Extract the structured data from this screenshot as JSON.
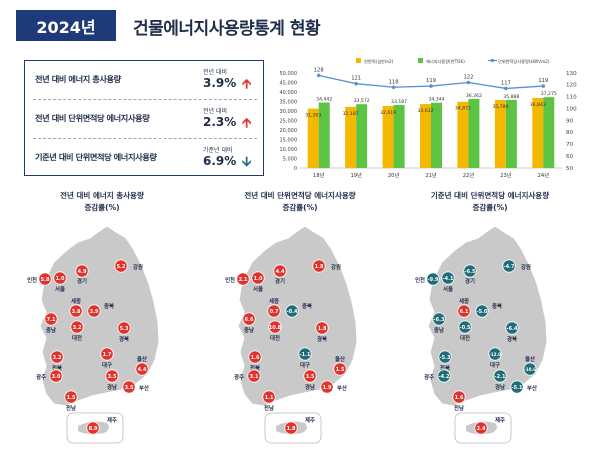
{
  "header": {
    "year_badge": "2024년",
    "title": "건물에너지사용량통계 현황"
  },
  "summary": [
    {
      "label": "전년 대비 에너지 총사용량",
      "sub": "전년 대비",
      "value": "3.9%",
      "direction": "up"
    },
    {
      "label": "전년 대비 단위면적당 에너지사용량",
      "sub": "전년 대비",
      "value": "2.3%",
      "direction": "up"
    },
    {
      "label": "기준년 대비 단위면적당 에너지사용량",
      "sub": "기준년 대비",
      "value": "6.9%",
      "direction": "down"
    }
  ],
  "colors": {
    "navy": "#1f3a78",
    "up": "#e0332b",
    "down": "#1f6d78",
    "bar_orange": "#f5b800",
    "bar_green": "#5cc343",
    "line": "#5b8fd4",
    "map_land": "#c9c9c9",
    "marker_red": "#e0332b",
    "marker_teal": "#1f6d78"
  },
  "chart_data": {
    "type": "bar",
    "categories": [
      "18년",
      "19년",
      "20년",
      "21년",
      "22년",
      "23년",
      "24년"
    ],
    "series": [
      {
        "name": "연면적(십만m2)",
        "type": "bar",
        "values": [
          31263,
          32187,
          32619,
          33632,
          34872,
          35789,
          36843
        ]
      },
      {
        "name": "에너지사용량(천TOE)",
        "type": "bar",
        "values": [
          34442,
          33572,
          33187,
          34344,
          36362,
          35888,
          37275
        ]
      },
      {
        "name": "단위면적당사용량(kWh/m2)",
        "type": "line",
        "axis": "right",
        "values": [
          128,
          121,
          118,
          119,
          122,
          117,
          119
        ]
      }
    ],
    "left_ticks": [
      "50,000",
      "45,000",
      "40,000",
      "35,000",
      "30,000",
      "25,000",
      "20,000",
      "15,000",
      "10,000",
      "5,000",
      "0"
    ],
    "right_ticks": [
      "130",
      "120",
      "110",
      "100",
      "90",
      "80",
      "70",
      "60",
      "50"
    ],
    "ylim_left": [
      0,
      50000
    ],
    "ylim_right": [
      50,
      130
    ]
  },
  "maps": [
    {
      "title_line1": "전년 대비 에너지 총사용량",
      "title_line2": "증감률(%)",
      "regions": [
        {
          "name": "인천",
          "value": "5.8",
          "color": "red"
        },
        {
          "name": "서울",
          "value": "1.0",
          "color": "red"
        },
        {
          "name": "경기",
          "value": "4.9",
          "color": "red"
        },
        {
          "name": "강원",
          "value": "5.2",
          "color": "red"
        },
        {
          "name": "세종",
          "value": "3.8",
          "color": "red"
        },
        {
          "name": "충북",
          "value": "3.9",
          "color": "red"
        },
        {
          "name": "충남",
          "value": "7.1",
          "color": "red"
        },
        {
          "name": "대전",
          "value": "3.2",
          "color": "red"
        },
        {
          "name": "경북",
          "value": "5.3",
          "color": "red"
        },
        {
          "name": "전북",
          "value": "3.2",
          "color": "red"
        },
        {
          "name": "대구",
          "value": "1.7",
          "color": "red"
        },
        {
          "name": "울산",
          "value": "4.4",
          "color": "red"
        },
        {
          "name": "광주",
          "value": "3.0",
          "color": "red"
        },
        {
          "name": "경남",
          "value": "3.5",
          "color": "red"
        },
        {
          "name": "부산",
          "value": "3.5",
          "color": "red"
        },
        {
          "name": "전남",
          "value": "1.5",
          "color": "red"
        },
        {
          "name": "제주",
          "value": "8.9",
          "color": "red"
        }
      ]
    },
    {
      "title_line1": "전년 대비 단위면적당 에너지사용량",
      "title_line2": "증감률(%)",
      "regions": [
        {
          "name": "인천",
          "value": "2.1",
          "color": "red"
        },
        {
          "name": "서울",
          "value": "1.0",
          "color": "red"
        },
        {
          "name": "경기",
          "value": "4.4",
          "color": "red"
        },
        {
          "name": "강원",
          "value": "1.8",
          "color": "red"
        },
        {
          "name": "세종",
          "value": "0.7",
          "color": "red"
        },
        {
          "name": "충북",
          "value": "-0.4",
          "color": "teal"
        },
        {
          "name": "충남",
          "value": "6.6",
          "color": "red"
        },
        {
          "name": "대전",
          "value": "10.8",
          "color": "red"
        },
        {
          "name": "경북",
          "value": "1.8",
          "color": "red"
        },
        {
          "name": "전북",
          "value": "1.6",
          "color": "red"
        },
        {
          "name": "대구",
          "value": "-1.1",
          "color": "teal"
        },
        {
          "name": "울산",
          "value": "1.5",
          "color": "red"
        },
        {
          "name": "광주",
          "value": "3.1",
          "color": "red"
        },
        {
          "name": "경남",
          "value": "3.5",
          "color": "red"
        },
        {
          "name": "부산",
          "value": "1.9",
          "color": "red"
        },
        {
          "name": "전남",
          "value": "1.1",
          "color": "red"
        },
        {
          "name": "제주",
          "value": "1.8",
          "color": "red"
        }
      ]
    },
    {
      "title_line1": "기준년 대비 단위면적당 에너지사용량",
      "title_line2": "증감률(%)",
      "regions": [
        {
          "name": "인천",
          "value": "-9.9",
          "color": "teal"
        },
        {
          "name": "서울",
          "value": "-4.1",
          "color": "teal"
        },
        {
          "name": "경기",
          "value": "-6.5",
          "color": "teal"
        },
        {
          "name": "강원",
          "value": "-4.7",
          "color": "teal"
        },
        {
          "name": "세종",
          "value": "6.1",
          "color": "red"
        },
        {
          "name": "충북",
          "value": "-5.0",
          "color": "teal"
        },
        {
          "name": "충남",
          "value": "-6.3",
          "color": "teal"
        },
        {
          "name": "대전",
          "value": "-0.5",
          "color": "teal"
        },
        {
          "name": "경북",
          "value": "-6.4",
          "color": "teal"
        },
        {
          "name": "전북",
          "value": "-5.3",
          "color": "teal"
        },
        {
          "name": "대구",
          "value": "-12.0",
          "color": "teal"
        },
        {
          "name": "울산",
          "value": "-10.6",
          "color": "teal"
        },
        {
          "name": "광주",
          "value": "-4.2",
          "color": "teal"
        },
        {
          "name": "경남",
          "value": "-2.1",
          "color": "teal"
        },
        {
          "name": "부산",
          "value": "-5.1",
          "color": "teal"
        },
        {
          "name": "전남",
          "value": "1.6",
          "color": "red"
        },
        {
          "name": "제주",
          "value": "2.4",
          "color": "red"
        }
      ]
    }
  ]
}
